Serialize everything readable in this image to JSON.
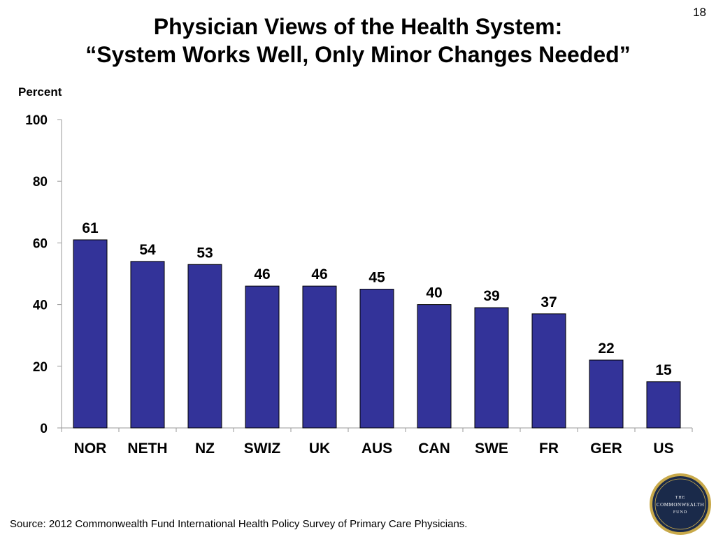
{
  "slide": {
    "number": "18",
    "title_line1": "Physician Views of the Health System:",
    "title_line2": "“System Works Well, Only Minor Changes Needed”",
    "source": "Source: 2012 Commonwealth Fund International Health Policy Survey of Primary Care Physicians.",
    "logo": {
      "line1": "THE",
      "line2": "COMMONWEALTH",
      "line3": "FUND",
      "colors": {
        "outer": "#c8a94a",
        "inner": "#1a2a4a",
        "text": "#ffffff"
      }
    }
  },
  "chart_data": {
    "type": "bar",
    "ylabel": "Percent",
    "ylim": [
      0,
      100
    ],
    "yticks": [
      0,
      20,
      40,
      60,
      80,
      100
    ],
    "grid": false,
    "categories": [
      "NOR",
      "NETH",
      "NZ",
      "SWIZ",
      "UK",
      "AUS",
      "CAN",
      "SWE",
      "FR",
      "GER",
      "US"
    ],
    "values": [
      61,
      54,
      53,
      46,
      46,
      45,
      40,
      39,
      37,
      22,
      15
    ],
    "bar_color": "#333399",
    "bar_outline": "#000000"
  }
}
